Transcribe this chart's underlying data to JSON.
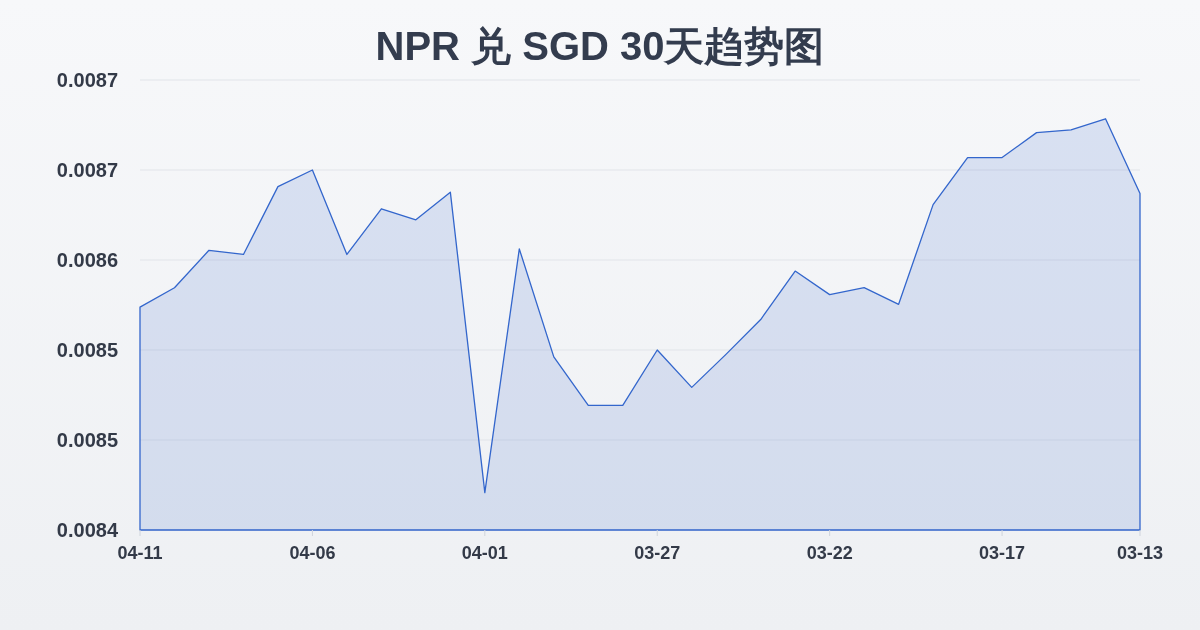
{
  "chart_data": {
    "type": "area",
    "title": "NPR 兑 SGD 30天趋势图",
    "categories": [
      "04-11",
      null,
      null,
      null,
      null,
      "04-06",
      null,
      null,
      null,
      null,
      "04-01",
      null,
      null,
      null,
      null,
      "03-27",
      null,
      null,
      null,
      null,
      "03-22",
      null,
      null,
      null,
      null,
      "03-17",
      null,
      null,
      null,
      "03-13"
    ],
    "series": [
      {
        "color": "#3366cc",
        "values": [
          0.008561,
          0.008575,
          0.008602,
          0.008599,
          0.008648,
          0.00866,
          0.008599,
          0.008632,
          0.008624,
          0.008644,
          0.008427,
          0.008603,
          0.008525,
          0.00849,
          0.00849,
          0.00853,
          0.008503,
          0.008527,
          0.008552,
          0.008587,
          0.00857,
          0.008575,
          0.008563,
          0.008635,
          0.008669,
          0.008669,
          0.008687,
          0.008689,
          0.008697,
          0.008643
        ]
      }
    ],
    "ylim": [
      0.0084,
      0.008725
    ],
    "yticks": [
      {
        "value": 0.0084,
        "label": "0.0084"
      },
      {
        "value": 0.008465,
        "label": "0.0085"
      },
      {
        "value": 0.00853,
        "label": "0.0085"
      },
      {
        "value": 0.008595,
        "label": "0.0086"
      },
      {
        "value": 0.00866,
        "label": "0.0087"
      },
      {
        "value": 0.008725,
        "label": "0.0087"
      }
    ],
    "grid": "y"
  }
}
